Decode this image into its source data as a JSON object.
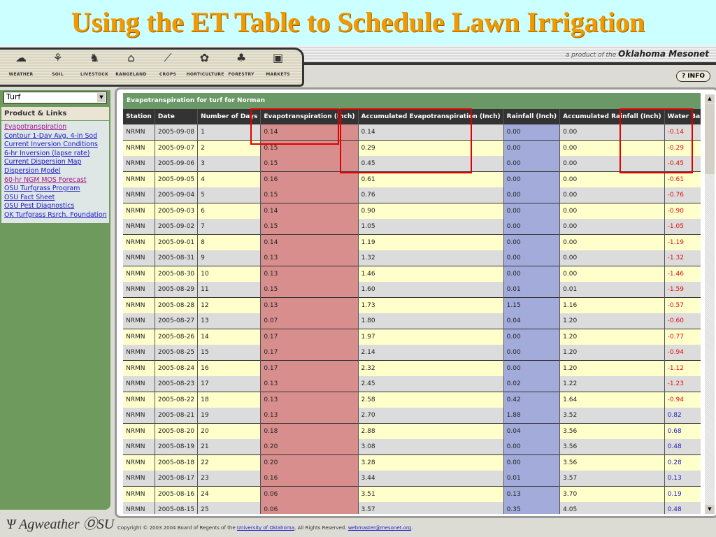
{
  "slide_title": "Using the ET Table to Schedule Lawn Irrigation",
  "banner": {
    "prefix": "a product of the",
    "brand": "Oklahoma Mesonet"
  },
  "nav": [
    {
      "label": "WEATHER",
      "icon": "cloud-icon"
    },
    {
      "label": "SOIL",
      "icon": "sprout-icon"
    },
    {
      "label": "LIVESTOCK",
      "icon": "cow-icon"
    },
    {
      "label": "RANGELAND",
      "icon": "windmill-icon"
    },
    {
      "label": "CROPS",
      "icon": "corn-icon"
    },
    {
      "label": "HORTICULTURE",
      "icon": "flower-icon"
    },
    {
      "label": "FORESTRY",
      "icon": "tree-icon"
    },
    {
      "label": "MARKETS",
      "icon": "chart-icon"
    }
  ],
  "info_label": "? INFO",
  "sidebar": {
    "select_value": "Turf",
    "section_title": "Product & Links",
    "links": [
      "Evapotranspiration",
      "Contour 1-Day Avg. 4-in Sod",
      "Current Inversion Conditions",
      "6-hr Inversion (lapse rate)",
      "Current Dispersion Map",
      "Dispersion Model",
      "60-hr NGM MOS Forecast",
      "OSU Turfgrass Program",
      "OSU Fact Sheet",
      "OSU Pest Diagnostics",
      "OK Turfgrass Rsrch. Foundation"
    ],
    "visited": [
      0,
      6
    ]
  },
  "table": {
    "title": "Evapotranspiration for turf for Norman",
    "headers": [
      "Station",
      "Date",
      "Number of Days",
      "Evapotranspiration (Inch)",
      "Accumulated Evapotranspiration (Inch)",
      "Rainfall (Inch)",
      "Accumulated Rainfall (Inch)",
      "Water Balance (Inch)"
    ],
    "rows": [
      [
        "NRMN",
        "2005-09-08",
        "1",
        "0.14",
        "0.14",
        "0.00",
        "0.00",
        "-0.14"
      ],
      [
        "NRMN",
        "2005-09-07",
        "2",
        "0.15",
        "0.29",
        "0.00",
        "0.00",
        "-0.29"
      ],
      [
        "NRMN",
        "2005-09-06",
        "3",
        "0.15",
        "0.45",
        "0.00",
        "0.00",
        "-0.45"
      ],
      [
        "NRMN",
        "2005-09-05",
        "4",
        "0.16",
        "0.61",
        "0.00",
        "0.00",
        "-0.61"
      ],
      [
        "NRMN",
        "2005-09-04",
        "5",
        "0.15",
        "0.76",
        "0.00",
        "0.00",
        "-0.76"
      ],
      [
        "NRMN",
        "2005-09-03",
        "6",
        "0.14",
        "0.90",
        "0.00",
        "0.00",
        "-0.90"
      ],
      [
        "NRMN",
        "2005-09-02",
        "7",
        "0.15",
        "1.05",
        "0.00",
        "0.00",
        "-1.05"
      ],
      [
        "NRMN",
        "2005-09-01",
        "8",
        "0.14",
        "1.19",
        "0.00",
        "0.00",
        "-1.19"
      ],
      [
        "NRMN",
        "2005-08-31",
        "9",
        "0.13",
        "1.32",
        "0.00",
        "0.00",
        "-1.32"
      ],
      [
        "NRMN",
        "2005-08-30",
        "10",
        "0.13",
        "1.46",
        "0.00",
        "0.00",
        "-1.46"
      ],
      [
        "NRMN",
        "2005-08-29",
        "11",
        "0.15",
        "1.60",
        "0.01",
        "0.01",
        "-1.59"
      ],
      [
        "NRMN",
        "2005-08-28",
        "12",
        "0.13",
        "1.73",
        "1.15",
        "1.16",
        "-0.57"
      ],
      [
        "NRMN",
        "2005-08-27",
        "13",
        "0.07",
        "1.80",
        "0.04",
        "1.20",
        "-0.60"
      ],
      [
        "NRMN",
        "2005-08-26",
        "14",
        "0.17",
        "1.97",
        "0.00",
        "1.20",
        "-0.77"
      ],
      [
        "NRMN",
        "2005-08-25",
        "15",
        "0.17",
        "2.14",
        "0.00",
        "1.20",
        "-0.94"
      ],
      [
        "NRMN",
        "2005-08-24",
        "16",
        "0.17",
        "2.32",
        "0.00",
        "1.20",
        "-1.12"
      ],
      [
        "NRMN",
        "2005-08-23",
        "17",
        "0.13",
        "2.45",
        "0.02",
        "1.22",
        "-1.23"
      ],
      [
        "NRMN",
        "2005-08-22",
        "18",
        "0.13",
        "2.58",
        "0.42",
        "1.64",
        "-0.94"
      ],
      [
        "NRMN",
        "2005-08-21",
        "19",
        "0.13",
        "2.70",
        "1.88",
        "3.52",
        "0.82"
      ],
      [
        "NRMN",
        "2005-08-20",
        "20",
        "0.18",
        "2.88",
        "0.04",
        "3.56",
        "0.68"
      ],
      [
        "NRMN",
        "2005-08-19",
        "21",
        "0.20",
        "3.08",
        "0.00",
        "3.56",
        "0.48"
      ],
      [
        "NRMN",
        "2005-08-18",
        "22",
        "0.20",
        "3.28",
        "0.00",
        "3.56",
        "0.28"
      ],
      [
        "NRMN",
        "2005-08-17",
        "23",
        "0.16",
        "3.44",
        "0.01",
        "3.57",
        "0.13"
      ],
      [
        "NRMN",
        "2005-08-16",
        "24",
        "0.06",
        "3.51",
        "0.13",
        "3.70",
        "0.19"
      ],
      [
        "NRMN",
        "2005-08-15",
        "25",
        "0.06",
        "3.57",
        "0.35",
        "4.05",
        "0.48"
      ]
    ]
  },
  "footer": {
    "logo": "Oklahoma Agweather OSU",
    "copyright": "Copyright © 2003 2004 Board of Regents of the ",
    "univ_link": "University of Oklahoma",
    "rights": ", All Rights Reserved. ",
    "email": "webmaster@mesonet.org",
    "end": "."
  },
  "colors": {
    "title": "#f09a00",
    "et_column": "#d98e8e",
    "rain_column": "#a3abdb",
    "negative": "#e01010",
    "positive": "#2020c0",
    "highlight_box": "#e00000"
  }
}
